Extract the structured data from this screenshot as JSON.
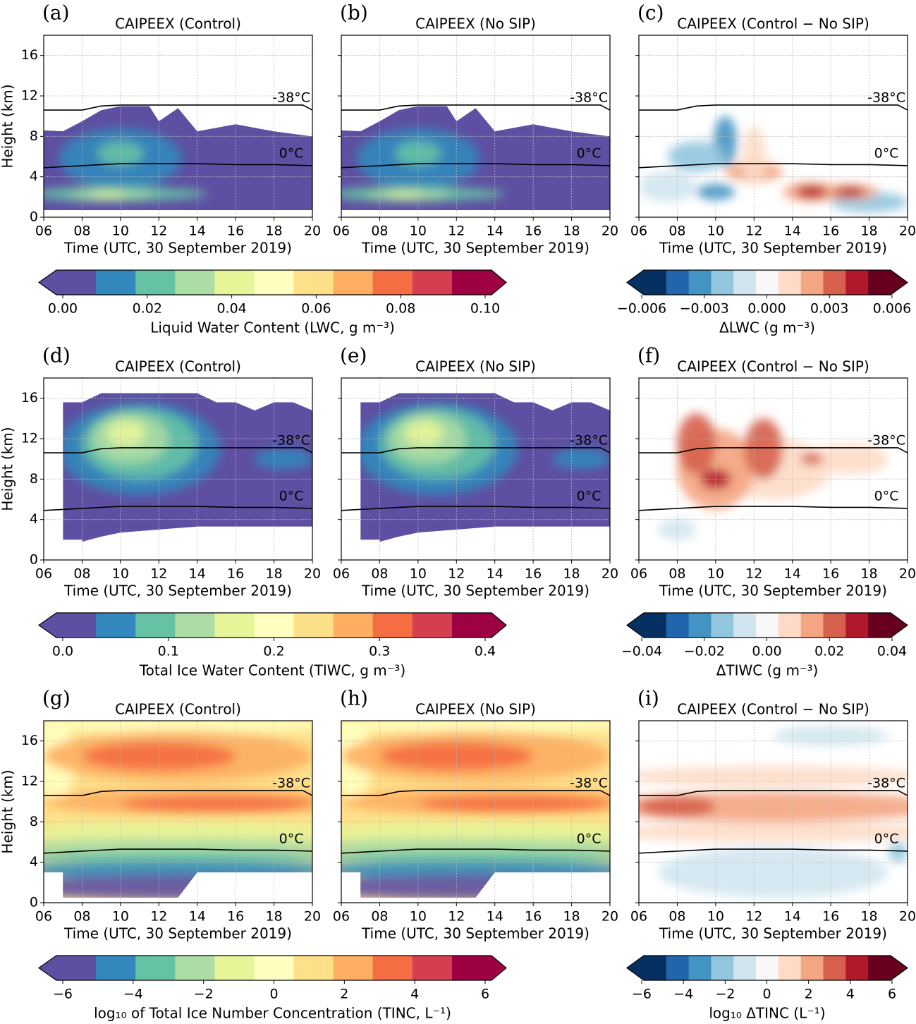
{
  "chart_data": {
    "type": "contour",
    "xlim": [
      6,
      20
    ],
    "ylim": [
      0,
      18
    ],
    "xticks": [
      {
        "value": 6,
        "label": "06"
      },
      {
        "value": 8,
        "label": "08"
      },
      10,
      12,
      14,
      16,
      18,
      20
    ],
    "yticks": [
      0,
      4,
      8,
      12,
      16
    ],
    "grid": true,
    "xlabel": "Time (UTC, 30 September 2019)",
    "ylabel": "Height (km)",
    "isotherms": [
      {
        "label": "-38°C",
        "x": [
          6,
          8,
          9,
          10,
          12,
          14,
          16,
          18,
          19.5,
          20
        ],
        "y": [
          10.6,
          10.6,
          11.0,
          11.1,
          11.1,
          11.1,
          11.1,
          11.1,
          11.1,
          10.6
        ]
      },
      {
        "label": "0°C",
        "x": [
          6,
          8,
          10,
          12,
          14,
          16,
          18,
          20
        ],
        "y": [
          4.9,
          5.1,
          5.3,
          5.3,
          5.3,
          5.2,
          5.2,
          5.1
        ]
      }
    ],
    "panels": [
      {
        "label": "(a)",
        "title": "CAIPEEX (Control)"
      },
      {
        "label": "(b)",
        "title": "CAIPEEX (No SIP)"
      },
      {
        "label": "(c)",
        "title": "CAIPEEX (Control − No SIP)"
      },
      {
        "label": "(d)",
        "title": "CAIPEEX (Control)"
      },
      {
        "label": "(e)",
        "title": "CAIPEEX (No SIP)"
      },
      {
        "label": "(f)",
        "title": "CAIPEEX (Control − No SIP)"
      },
      {
        "label": "(g)",
        "title": "CAIPEEX (Control)"
      },
      {
        "label": "(h)",
        "title": "CAIPEEX (No SIP)"
      },
      {
        "label": "(i)",
        "title": "CAIPEEX (Control − No SIP)"
      }
    ],
    "colorbars": [
      {
        "label": "Liquid Water Content (LWC, g m⁻³)",
        "clim": [
          0,
          0.1
        ],
        "ticks": [
          {
            "value": 0,
            "label": "0.00"
          },
          0.02,
          0.04,
          0.06,
          0.08,
          {
            "value": 0.1,
            "label": "0.10"
          }
        ],
        "colors": [
          "#5e4fa2",
          "#3288bd",
          "#66c2a5",
          "#abdda4",
          "#e6f598",
          "#ffffbf",
          "#fee08b",
          "#fdae61",
          "#f46d43",
          "#d53e4f",
          "#9e0142"
        ]
      },
      {
        "label": "ΔLWC (g m⁻³)",
        "clim": [
          -0.006,
          0.006
        ],
        "ticks": [
          {
            "value": -0.006,
            "label": "−0.006"
          },
          {
            "value": -0.003,
            "label": "−0.003"
          },
          {
            "value": 0,
            "label": "0.000"
          },
          0.003,
          0.006
        ],
        "colors": [
          "#053061",
          "#2166ac",
          "#4393c3",
          "#92c5de",
          "#d1e5f0",
          "#f7f7f7",
          "#fddbc7",
          "#f4a582",
          "#d6604d",
          "#b2182b",
          "#67001f"
        ]
      },
      {
        "label": "Total Ice Water Content (TIWC, g m⁻³)",
        "clim": [
          0,
          0.4
        ],
        "ticks": [
          {
            "value": 0,
            "label": "0.0"
          },
          0.1,
          0.2,
          0.3,
          0.4
        ],
        "colors": [
          "#5e4fa2",
          "#3288bd",
          "#66c2a5",
          "#abdda4",
          "#e6f598",
          "#ffffbf",
          "#fee08b",
          "#fdae61",
          "#f46d43",
          "#d53e4f",
          "#9e0142"
        ]
      },
      {
        "label": "ΔTIWC (g m⁻³)",
        "clim": [
          -0.04,
          0.04
        ],
        "ticks": [
          {
            "value": -0.04,
            "label": "−0.04"
          },
          {
            "value": -0.02,
            "label": "−0.02"
          },
          {
            "value": 0,
            "label": "0.00"
          },
          0.02,
          0.04
        ],
        "colors": [
          "#053061",
          "#2166ac",
          "#4393c3",
          "#92c5de",
          "#d1e5f0",
          "#f7f7f7",
          "#fddbc7",
          "#f4a582",
          "#d6604d",
          "#b2182b",
          "#67001f"
        ]
      },
      {
        "label": "log₁₀ of Total Ice Number Concentration (TINC, L⁻¹)",
        "clim": [
          -6,
          6
        ],
        "ticks": [
          {
            "value": -6,
            "label": "−6"
          },
          {
            "value": -4,
            "label": "−4"
          },
          {
            "value": -2,
            "label": "−2"
          },
          0,
          2,
          4,
          6
        ],
        "colors": [
          "#5e4fa2",
          "#3288bd",
          "#66c2a5",
          "#abdda4",
          "#e6f598",
          "#ffffbf",
          "#fee08b",
          "#fdae61",
          "#f46d43",
          "#d53e4f",
          "#9e0142"
        ]
      },
      {
        "label": "log₁₀ ΔTINC (L⁻¹)",
        "clim": [
          -6,
          6
        ],
        "ticks": [
          {
            "value": -6,
            "label": "−6"
          },
          {
            "value": -4,
            "label": "−4"
          },
          {
            "value": -2,
            "label": "−2"
          },
          0,
          2,
          4,
          6
        ],
        "colors": [
          "#053061",
          "#2166ac",
          "#4393c3",
          "#92c5de",
          "#d1e5f0",
          "#f7f7f7",
          "#fddbc7",
          "#f4a582",
          "#d6604d",
          "#b2182b",
          "#67001f"
        ]
      }
    ]
  }
}
